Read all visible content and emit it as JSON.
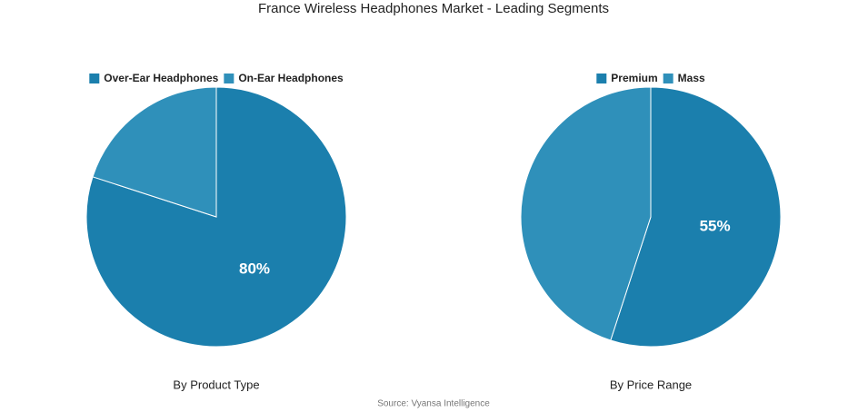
{
  "title": "France Wireless Headphones Market - Leading Segments",
  "source": "Source: Vyansa Intelligence",
  "chart_data": [
    {
      "type": "pie",
      "subtitle": "By Product Type",
      "categories": [
        "Over-Ear Headphones",
        "On-Ear Headphones"
      ],
      "values": [
        80,
        20
      ],
      "value_labels": [
        "80%",
        null
      ],
      "colors": [
        "#1b7fad",
        "#2f90ba"
      ]
    },
    {
      "type": "pie",
      "subtitle": "By Price Range",
      "categories": [
        "Premium",
        "Mass"
      ],
      "values": [
        55,
        45
      ],
      "value_labels": [
        "55%",
        null
      ],
      "colors": [
        "#1b7fad",
        "#2f90ba"
      ]
    }
  ]
}
